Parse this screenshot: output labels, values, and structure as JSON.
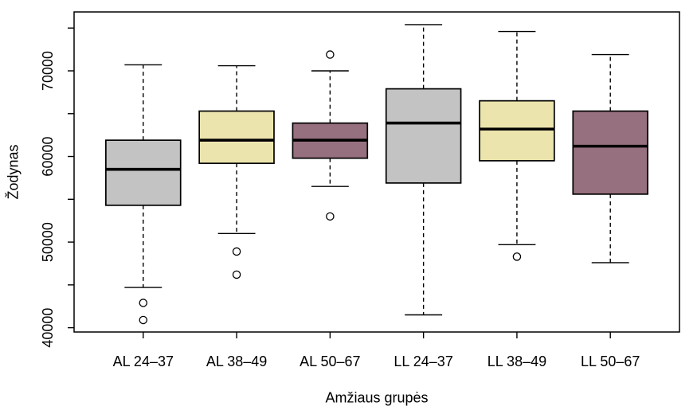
{
  "chart_data": {
    "type": "boxplot",
    "title": "",
    "xlabel": "Amžiaus grupės",
    "ylabel": "Žodynas",
    "ylim": [
      39500,
      76880
    ],
    "xlim": [
      0.26,
      6.74
    ],
    "grid": false,
    "legend": "none",
    "box_width": 0.8,
    "cap_width": 0.4,
    "background_color": "#ffffff",
    "axis_color": "#000000",
    "text_color": "#000000",
    "yticks": [
      {
        "value": 40000,
        "label": "40000"
      },
      {
        "value": 45000,
        "label": ""
      },
      {
        "value": 50000,
        "label": "50000"
      },
      {
        "value": 55000,
        "label": ""
      },
      {
        "value": 60000,
        "label": "60000"
      },
      {
        "value": 65000,
        "label": ""
      },
      {
        "value": 70000,
        "label": "70000"
      },
      {
        "value": 75000,
        "label": ""
      }
    ],
    "categories": [
      "AL 24–37",
      "AL 38–49",
      "AL 50–67",
      "LL 24–37",
      "LL 38–49",
      "LL 50–67"
    ],
    "boxes": [
      {
        "label": "AL 24–37",
        "color": "#c3c3c3",
        "whisker_low": 44700,
        "q1": 54300,
        "median": 58500,
        "q3": 61900,
        "whisker_high": 70700,
        "outliers": [
          42900,
          40900
        ]
      },
      {
        "label": "AL 38–49",
        "color": "#ece4ad",
        "whisker_low": 51000,
        "q1": 59200,
        "median": 61900,
        "q3": 65300,
        "whisker_high": 70600,
        "outliers": [
          48900,
          46200
        ]
      },
      {
        "label": "AL 50–67",
        "color": "#96707f",
        "whisker_low": 56500,
        "q1": 59800,
        "median": 61900,
        "q3": 63900,
        "whisker_high": 70000,
        "outliers": [
          71900,
          53000
        ]
      },
      {
        "label": "LL 24–37",
        "color": "#c3c3c3",
        "whisker_low": 41500,
        "q1": 56900,
        "median": 63900,
        "q3": 67900,
        "whisker_high": 75400,
        "outliers": []
      },
      {
        "label": "LL 38–49",
        "color": "#ece4ad",
        "whisker_low": 49700,
        "q1": 59500,
        "median": 63200,
        "q3": 66500,
        "whisker_high": 74600,
        "outliers": [
          48300
        ]
      },
      {
        "label": "LL 50–67",
        "color": "#96707f",
        "whisker_low": 47600,
        "q1": 55600,
        "median": 61200,
        "q3": 65300,
        "whisker_high": 71900,
        "outliers": []
      }
    ]
  }
}
